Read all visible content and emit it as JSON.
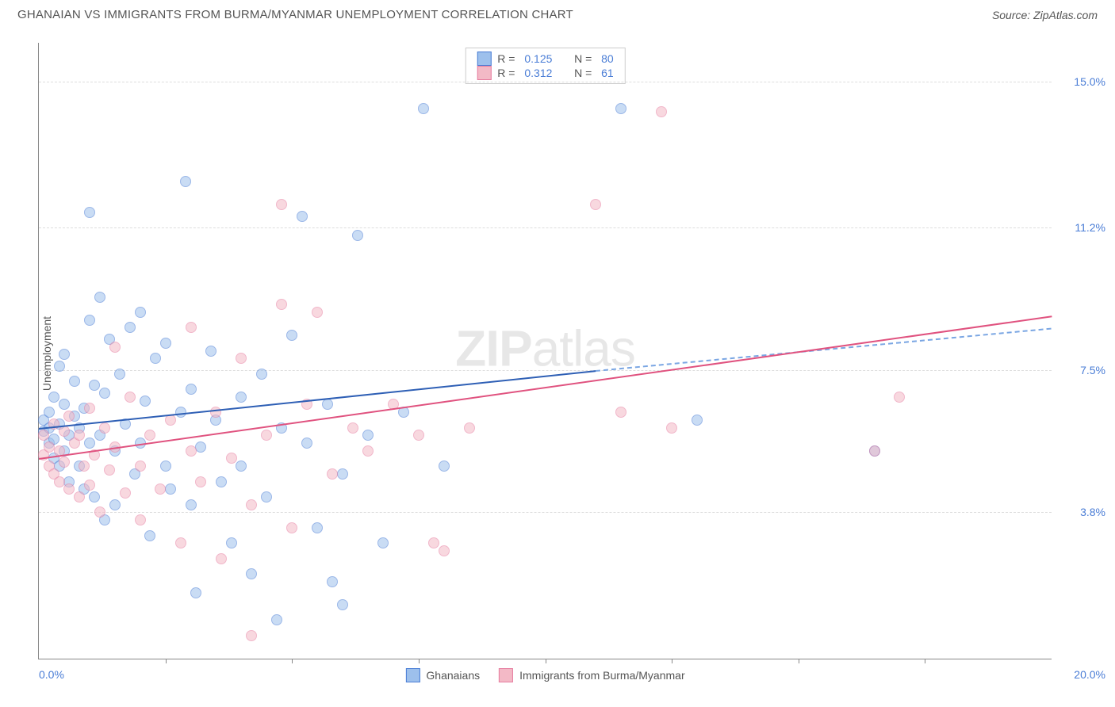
{
  "header": {
    "title": "GHANAIAN VS IMMIGRANTS FROM BURMA/MYANMAR UNEMPLOYMENT CORRELATION CHART",
    "source_prefix": "Source: ",
    "source_name": "ZipAtlas.com"
  },
  "watermark": {
    "zip": "ZIP",
    "atlas": "atlas"
  },
  "ylabel": "Unemployment",
  "chart": {
    "type": "scatter",
    "background_color": "#ffffff",
    "grid_color": "#dddddd",
    "axis_color": "#888888",
    "xlim": [
      0,
      20
    ],
    "ylim": [
      0,
      16
    ],
    "y_ticks": [
      {
        "value": 3.8,
        "label": "3.8%"
      },
      {
        "value": 7.5,
        "label": "7.5%"
      },
      {
        "value": 11.2,
        "label": "11.2%"
      },
      {
        "value": 15.0,
        "label": "15.0%"
      }
    ],
    "x_tick_positions": [
      2.5,
      5,
      7.5,
      10,
      12.5,
      15,
      17.5
    ],
    "x_left_label": "0.0%",
    "x_right_label": "20.0%",
    "marker_size": 14,
    "marker_opacity": 0.55,
    "series": [
      {
        "name": "Ghanaians",
        "fill_color": "#9dc0ec",
        "stroke_color": "#4a7dd6",
        "trend_solid_color": "#2e5fb5",
        "trend_dash_color": "#7aa6e3",
        "trend_dash_start": [
          11,
          7.5
        ],
        "R": "0.125",
        "N": "80",
        "trend": {
          "x1": 0,
          "y1": 6.0,
          "x2": 20,
          "y2": 8.6
        },
        "points": [
          [
            0.1,
            5.9
          ],
          [
            0.1,
            6.2
          ],
          [
            0.2,
            5.6
          ],
          [
            0.2,
            6.0
          ],
          [
            0.2,
            6.4
          ],
          [
            0.3,
            5.2
          ],
          [
            0.3,
            5.7
          ],
          [
            0.3,
            6.8
          ],
          [
            0.4,
            7.6
          ],
          [
            0.4,
            5.0
          ],
          [
            0.4,
            6.1
          ],
          [
            0.5,
            5.4
          ],
          [
            0.5,
            6.6
          ],
          [
            0.5,
            7.9
          ],
          [
            0.6,
            4.6
          ],
          [
            0.6,
            5.8
          ],
          [
            0.7,
            6.3
          ],
          [
            0.7,
            7.2
          ],
          [
            0.8,
            5.0
          ],
          [
            0.8,
            6.0
          ],
          [
            0.9,
            4.4
          ],
          [
            0.9,
            6.5
          ],
          [
            1.0,
            11.6
          ],
          [
            1.0,
            8.8
          ],
          [
            1.0,
            5.6
          ],
          [
            1.1,
            7.1
          ],
          [
            1.1,
            4.2
          ],
          [
            1.2,
            9.4
          ],
          [
            1.2,
            5.8
          ],
          [
            1.3,
            6.9
          ],
          [
            1.3,
            3.6
          ],
          [
            1.4,
            8.3
          ],
          [
            1.5,
            5.4
          ],
          [
            1.5,
            4.0
          ],
          [
            1.6,
            7.4
          ],
          [
            1.7,
            6.1
          ],
          [
            1.8,
            8.6
          ],
          [
            1.9,
            4.8
          ],
          [
            2.0,
            9.0
          ],
          [
            2.0,
            5.6
          ],
          [
            2.1,
            6.7
          ],
          [
            2.2,
            3.2
          ],
          [
            2.3,
            7.8
          ],
          [
            2.5,
            5.0
          ],
          [
            2.5,
            8.2
          ],
          [
            2.6,
            4.4
          ],
          [
            2.8,
            6.4
          ],
          [
            2.9,
            12.4
          ],
          [
            3.0,
            7.0
          ],
          [
            3.0,
            4.0
          ],
          [
            3.1,
            1.7
          ],
          [
            3.2,
            5.5
          ],
          [
            3.4,
            8.0
          ],
          [
            3.5,
            6.2
          ],
          [
            3.6,
            4.6
          ],
          [
            3.8,
            3.0
          ],
          [
            4.0,
            6.8
          ],
          [
            4.0,
            5.0
          ],
          [
            4.2,
            2.2
          ],
          [
            4.4,
            7.4
          ],
          [
            4.5,
            4.2
          ],
          [
            4.7,
            1.0
          ],
          [
            4.8,
            6.0
          ],
          [
            5.0,
            8.4
          ],
          [
            5.2,
            11.5
          ],
          [
            5.3,
            5.6
          ],
          [
            5.5,
            3.4
          ],
          [
            5.7,
            6.6
          ],
          [
            5.8,
            2.0
          ],
          [
            6.0,
            4.8
          ],
          [
            6.0,
            1.4
          ],
          [
            6.3,
            11.0
          ],
          [
            6.5,
            5.8
          ],
          [
            6.8,
            3.0
          ],
          [
            7.2,
            6.4
          ],
          [
            7.6,
            14.3
          ],
          [
            8.0,
            5.0
          ],
          [
            11.5,
            14.3
          ],
          [
            13.0,
            6.2
          ],
          [
            16.5,
            5.4
          ]
        ]
      },
      {
        "name": "Immigrants from Burma/Myanmar",
        "fill_color": "#f3b9c6",
        "stroke_color": "#e67da0",
        "trend_solid_color": "#e0527f",
        "R": "0.312",
        "N": "61",
        "trend": {
          "x1": 0,
          "y1": 5.2,
          "x2": 20,
          "y2": 8.9
        },
        "points": [
          [
            0.1,
            5.3
          ],
          [
            0.1,
            5.8
          ],
          [
            0.2,
            5.0
          ],
          [
            0.2,
            5.5
          ],
          [
            0.3,
            4.8
          ],
          [
            0.3,
            6.1
          ],
          [
            0.4,
            5.4
          ],
          [
            0.4,
            4.6
          ],
          [
            0.5,
            5.9
          ],
          [
            0.5,
            5.1
          ],
          [
            0.6,
            4.4
          ],
          [
            0.6,
            6.3
          ],
          [
            0.7,
            5.6
          ],
          [
            0.8,
            4.2
          ],
          [
            0.8,
            5.8
          ],
          [
            0.9,
            5.0
          ],
          [
            1.0,
            6.5
          ],
          [
            1.0,
            4.5
          ],
          [
            1.1,
            5.3
          ],
          [
            1.2,
            3.8
          ],
          [
            1.3,
            6.0
          ],
          [
            1.4,
            4.9
          ],
          [
            1.5,
            8.1
          ],
          [
            1.5,
            5.5
          ],
          [
            1.7,
            4.3
          ],
          [
            1.8,
            6.8
          ],
          [
            2.0,
            5.0
          ],
          [
            2.0,
            3.6
          ],
          [
            2.2,
            5.8
          ],
          [
            2.4,
            4.4
          ],
          [
            2.6,
            6.2
          ],
          [
            2.8,
            3.0
          ],
          [
            3.0,
            5.4
          ],
          [
            3.0,
            8.6
          ],
          [
            3.2,
            4.6
          ],
          [
            3.5,
            6.4
          ],
          [
            3.6,
            2.6
          ],
          [
            3.8,
            5.2
          ],
          [
            4.0,
            7.8
          ],
          [
            4.2,
            4.0
          ],
          [
            4.2,
            0.6
          ],
          [
            4.5,
            5.8
          ],
          [
            4.8,
            9.2
          ],
          [
            4.8,
            11.8
          ],
          [
            5.0,
            3.4
          ],
          [
            5.3,
            6.6
          ],
          [
            5.5,
            9.0
          ],
          [
            5.8,
            4.8
          ],
          [
            6.2,
            6.0
          ],
          [
            6.5,
            5.4
          ],
          [
            7.0,
            6.6
          ],
          [
            7.5,
            5.8
          ],
          [
            7.8,
            3.0
          ],
          [
            8.0,
            2.8
          ],
          [
            8.5,
            6.0
          ],
          [
            11.0,
            11.8
          ],
          [
            11.5,
            6.4
          ],
          [
            12.3,
            14.2
          ],
          [
            12.5,
            6.0
          ],
          [
            16.5,
            5.4
          ],
          [
            17.0,
            6.8
          ]
        ]
      }
    ]
  },
  "legend_labels": {
    "R": "R = ",
    "N": "N = "
  },
  "bottom_legend": {
    "a": "Ghanaians",
    "b": "Immigrants from Burma/Myanmar"
  }
}
